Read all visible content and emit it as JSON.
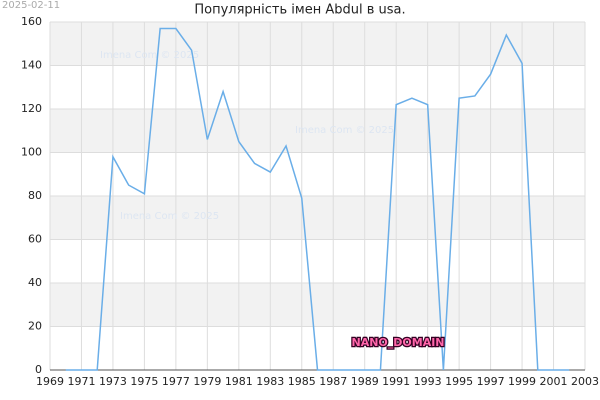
{
  "chart_data": {
    "type": "line",
    "title": "Популярність імен Abdul в usa.",
    "date": "2025-02-11",
    "watermarks": [
      "Imena Com  © 2025",
      "Imena Com  © 2025",
      "Imena Com  © 2025"
    ],
    "badge": "NANO_DOMAIN",
    "x": [
      1970,
      1971,
      1972,
      1973,
      1974,
      1975,
      1976,
      1977,
      1978,
      1979,
      1980,
      1981,
      1982,
      1983,
      1984,
      1985,
      1986,
      1987,
      1988,
      1989,
      1990,
      1991,
      1992,
      1993,
      1994,
      1995,
      1996,
      1997,
      1998,
      1999,
      2000,
      2001,
      2002
    ],
    "series": [
      {
        "color": "#6aaee8",
        "values": [
          0,
          0,
          0,
          98,
          85,
          81,
          157,
          157,
          147,
          106,
          128,
          105,
          95,
          91,
          103,
          79,
          0,
          0,
          0,
          0,
          0,
          122,
          125,
          122,
          0,
          125,
          126,
          136,
          154,
          141,
          0,
          0,
          0
        ]
      }
    ],
    "xlim": [
      1969,
      2003
    ],
    "xticks": [
      1969,
      1971,
      1973,
      1975,
      1977,
      1979,
      1981,
      1983,
      1985,
      1987,
      1989,
      1991,
      1993,
      1995,
      1997,
      1999,
      2001,
      2003
    ],
    "ylim": [
      0,
      160
    ],
    "yticks": [
      0,
      20,
      40,
      60,
      80,
      100,
      120,
      140,
      160
    ],
    "grid": true
  }
}
